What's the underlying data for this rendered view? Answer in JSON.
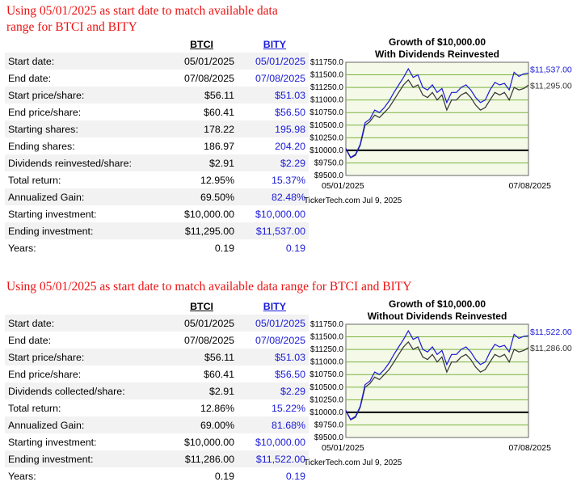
{
  "sections": [
    {
      "heading": "Using 05/01/2025 as start date to match available data range for BTCI and BITY",
      "col1": "BTCI",
      "col2": "BITY",
      "rows": [
        {
          "label": "Start date:",
          "v1": "05/01/2025",
          "v2": "05/01/2025"
        },
        {
          "label": "End date:",
          "v1": "07/08/2025",
          "v2": "07/08/2025"
        },
        {
          "label": "Start price/share:",
          "v1": "$56.11",
          "v2": "$51.03"
        },
        {
          "label": "End price/share:",
          "v1": "$60.41",
          "v2": "$56.50"
        },
        {
          "label": "Starting shares:",
          "v1": "178.22",
          "v2": "195.98"
        },
        {
          "label": "Ending shares:",
          "v1": "186.97",
          "v2": "204.20"
        },
        {
          "label": "Dividends reinvested/share:",
          "v1": "$2.91",
          "v2": "$2.29"
        },
        {
          "label": "Total return:",
          "v1": "12.95%",
          "v2": "15.37%"
        },
        {
          "label": "Annualized Gain:",
          "v1": "69.50%",
          "v2": "82.48%"
        },
        {
          "label": "Starting investment:",
          "v1": "$10,000.00",
          "v2": "$10,000.00"
        },
        {
          "label": "Ending investment:",
          "v1": "$11,295.00",
          "v2": "$11,537.00"
        },
        {
          "label": "Years:",
          "v1": "0.19",
          "v2": "0.19"
        }
      ]
    },
    {
      "heading": "Using 05/01/2025 as start date to match available data range for BTCI and BITY",
      "col1": "BTCI",
      "col2": "BITY",
      "rows": [
        {
          "label": "Start date:",
          "v1": "05/01/2025",
          "v2": "05/01/2025"
        },
        {
          "label": "End date:",
          "v1": "07/08/2025",
          "v2": "07/08/2025"
        },
        {
          "label": "Start price/share:",
          "v1": "$56.11",
          "v2": "$51.03"
        },
        {
          "label": "End price/share:",
          "v1": "$60.41",
          "v2": "$56.50"
        },
        {
          "label": "Dividends collected/share:",
          "v1": "$2.91",
          "v2": "$2.29"
        },
        {
          "label": "Total return:",
          "v1": "12.86%",
          "v2": "15.22%"
        },
        {
          "label": "Annualized Gain:",
          "v1": "69.00%",
          "v2": "81.68%"
        },
        {
          "label": "Starting investment:",
          "v1": "$10,000.00",
          "v2": "$10,000.00"
        },
        {
          "label": "Ending investment:",
          "v1": "$11,286.00",
          "v2": "$11,522.00"
        },
        {
          "label": "Years:",
          "v1": "0.19",
          "v2": "0.19"
        }
      ]
    }
  ],
  "chart_data": [
    {
      "type": "line",
      "title": "Growth of $10,000.00",
      "subtitle": "With Dividends Reinvested",
      "xlabel_start": "05/01/2025",
      "xlabel_end": "07/08/2025",
      "footer": "TickerTech.com  Jul 9, 2025",
      "ylim": [
        9500,
        11750
      ],
      "yticks": [
        "$11750.0",
        "$11500.0",
        "$11250.0",
        "$11000.0",
        "$10750.0",
        "$10500.0",
        "$10250.0",
        "$10000.0",
        "$9750.0",
        "$9500.0"
      ],
      "yticks_values": [
        11750,
        11500,
        11250,
        11000,
        10750,
        10500,
        10250,
        10000,
        9750,
        9500
      ],
      "baseline": 10000,
      "grid": true,
      "colors": {
        "BTCI": "#333333",
        "BITY": "#1a1ad8",
        "grid": "#7cb342",
        "baseline": "#000000",
        "bg": "#f4f9e8"
      },
      "series": [
        {
          "name": "BTCI",
          "end_label": "$11,295.00",
          "values": [
            10030,
            9850,
            9900,
            10100,
            10500,
            10570,
            10700,
            10650,
            10750,
            10850,
            11000,
            11150,
            11300,
            11400,
            11250,
            11300,
            11100,
            11050,
            11150,
            11000,
            11100,
            10800,
            11000,
            11000,
            11100,
            11150,
            11050,
            10900,
            10800,
            10850,
            11000,
            11150,
            11100,
            11150,
            11000,
            11250,
            11200,
            11230,
            11295
          ]
        },
        {
          "name": "BITY",
          "end_label": "$11,537.00",
          "values": [
            10040,
            9860,
            9920,
            10120,
            10550,
            10620,
            10800,
            10750,
            10850,
            10980,
            11150,
            11300,
            11450,
            11620,
            11450,
            11500,
            11250,
            11200,
            11300,
            11150,
            11230,
            10950,
            11150,
            11150,
            11250,
            11300,
            11200,
            11050,
            10950,
            11000,
            11200,
            11350,
            11300,
            11330,
            11200,
            11550,
            11470,
            11520,
            11537
          ]
        }
      ]
    },
    {
      "type": "line",
      "title": "Growth of $10,000.00",
      "subtitle": "Without Dividends Reinvested",
      "xlabel_start": "05/01/2025",
      "xlabel_end": "07/08/2025",
      "footer": "TickerTech.com  Jul 9, 2025",
      "ylim": [
        9500,
        11750
      ],
      "yticks": [
        "$11750.0",
        "$11500.0",
        "$11250.0",
        "$11000.0",
        "$10750.0",
        "$10500.0",
        "$10250.0",
        "$10000.0",
        "$9750.0",
        "$9500.0"
      ],
      "yticks_values": [
        11750,
        11500,
        11250,
        11000,
        10750,
        10500,
        10250,
        10000,
        9750,
        9500
      ],
      "baseline": 10000,
      "grid": true,
      "colors": {
        "BTCI": "#333333",
        "BITY": "#1a1ad8",
        "grid": "#7cb342",
        "baseline": "#000000",
        "bg": "#f4f9e8"
      },
      "series": [
        {
          "name": "BTCI",
          "end_label": "$11,286.00",
          "values": [
            10030,
            9850,
            9900,
            10100,
            10500,
            10570,
            10700,
            10650,
            10750,
            10850,
            11000,
            11150,
            11300,
            11400,
            11250,
            11300,
            11100,
            11050,
            11150,
            11000,
            11100,
            10800,
            11000,
            11000,
            11100,
            11150,
            11050,
            10900,
            10800,
            10850,
            11000,
            11150,
            11100,
            11150,
            11000,
            11250,
            11200,
            11230,
            11286
          ]
        },
        {
          "name": "BITY",
          "end_label": "$11,522.00",
          "values": [
            10040,
            9860,
            9920,
            10120,
            10550,
            10620,
            10800,
            10750,
            10850,
            10980,
            11150,
            11300,
            11450,
            11620,
            11450,
            11500,
            11250,
            11200,
            11300,
            11150,
            11230,
            10950,
            11150,
            11150,
            11250,
            11300,
            11200,
            11050,
            10950,
            11000,
            11200,
            11350,
            11300,
            11330,
            11200,
            11550,
            11470,
            11510,
            11522
          ]
        }
      ]
    }
  ]
}
